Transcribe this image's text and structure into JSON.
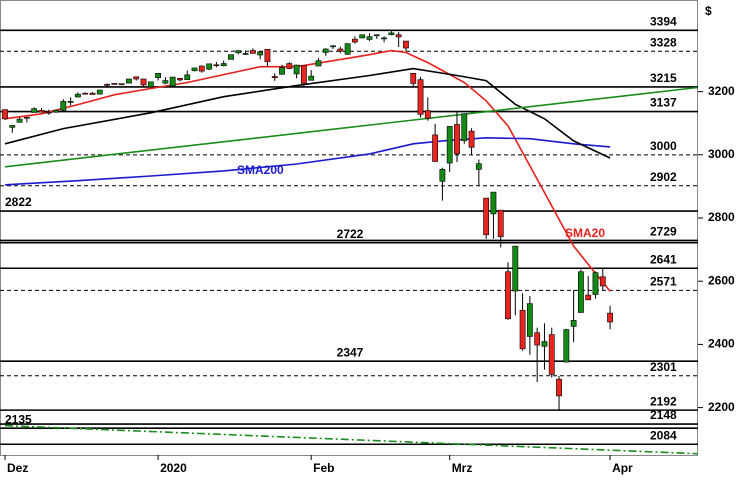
{
  "chart_data": {
    "type": "candlestick",
    "currency_symbol": "$",
    "categories": [
      "Dez",
      null,
      null,
      null,
      null,
      null,
      null,
      null,
      null,
      null,
      null,
      null,
      null,
      null,
      null,
      null,
      null,
      null,
      null,
      null,
      null,
      "2020",
      null,
      null,
      null,
      null,
      null,
      null,
      null,
      null,
      null,
      null,
      null,
      null,
      null,
      null,
      null,
      null,
      null,
      null,
      null,
      null,
      "Feb",
      null,
      null,
      null,
      null,
      null,
      null,
      null,
      null,
      null,
      null,
      null,
      null,
      null,
      null,
      null,
      null,
      null,
      null,
      "Mrz",
      null,
      null,
      null,
      null,
      null,
      null,
      null,
      null,
      null,
      null,
      null,
      null,
      null,
      null,
      null,
      null,
      null,
      null,
      null,
      null,
      null,
      "Apr"
    ],
    "open": [
      3143,
      3087,
      3103,
      3119,
      3134,
      3141,
      3135,
      3135,
      3141,
      3166,
      3183,
      3195,
      3195,
      3192,
      3223,
      3226,
      3225,
      3227,
      3247,
      3240,
      3215,
      3244,
      3227,
      3218,
      3242,
      3238,
      3266,
      3281,
      3271,
      3285,
      3282,
      3302,
      3323,
      3321,
      3330,
      3316,
      3334,
      3248,
      3255,
      3289,
      3256,
      3282,
      3236,
      3281,
      3324,
      3344,
      3335,
      3318,
      3366,
      3370,
      3365,
      3378,
      3369,
      3380,
      3380,
      3360,
      3258,
      3238,
      3140,
      3063,
      2916,
      2974,
      3096,
      3045,
      3075,
      2954,
      2863,
      2813,
      2825,
      2630,
      2569,
      2508,
      2425,
      2437,
      2394,
      2431,
      2290,
      2344,
      2457,
      2501,
      2556,
      2558,
      2614,
      2499
    ],
    "high": [
      3144,
      3094,
      3119,
      3119,
      3150,
      3148,
      3143,
      3143,
      3176,
      3182,
      3198,
      3198,
      3199,
      3205,
      3226,
      3227,
      3226,
      3240,
      3247,
      3240,
      3231,
      3258,
      3246,
      3247,
      3244,
      3267,
      3275,
      3283,
      3288,
      3294,
      3298,
      3317,
      3330,
      3329,
      3337,
      3326,
      3334,
      3258,
      3285,
      3293,
      3285,
      3282,
      3268,
      3306,
      3337,
      3347,
      3342,
      3352,
      3375,
      3381,
      3385,
      3380,
      3375,
      3393,
      3389,
      3360,
      3259,
      3247,
      3182,
      3098,
      2959,
      3091,
      3137,
      3130,
      3084,
      2985,
      2863,
      2882,
      2825,
      2660,
      2711,
      2562,
      2553,
      2453,
      2467,
      2453,
      2300,
      2449,
      2572,
      2637,
      2616,
      2631,
      2641,
      2522
    ],
    "low": [
      3110,
      3070,
      3102,
      3103,
      3134,
      3135,
      3127,
      3133,
      3138,
      3156,
      3182,
      3191,
      3191,
      3192,
      3216,
      3222,
      3220,
      3227,
      3235,
      3216,
      3213,
      3235,
      3223,
      3215,
      3232,
      3236,
      3264,
      3260,
      3268,
      3277,
      3280,
      3302,
      3318,
      3316,
      3321,
      3302,
      3281,
      3234,
      3253,
      3271,
      3242,
      3214,
      3236,
      3281,
      3313,
      3335,
      3322,
      3317,
      3352,
      3369,
      3360,
      3367,
      3356,
      3378,
      3341,
      3328,
      3214,
      3118,
      3108,
      2977,
      2855,
      2946,
      2977,
      3035,
      2999,
      2901,
      2734,
      2734,
      2707,
      2478,
      2492,
      2380,
      2367,
      2281,
      2320,
      2295,
      2192,
      2344,
      2407,
      2501,
      2546,
      2545,
      2571,
      2448
    ],
    "close": [
      3114,
      3093,
      3113,
      3117,
      3146,
      3135,
      3133,
      3141,
      3169,
      3169,
      3192,
      3192,
      3191,
      3205,
      3221,
      3224,
      3223,
      3240,
      3240,
      3221,
      3231,
      3258,
      3235,
      3246,
      3237,
      3253,
      3275,
      3265,
      3288,
      3283,
      3289,
      3317,
      3330,
      3321,
      3321,
      3326,
      3295,
      3244,
      3276,
      3273,
      3284,
      3226,
      3249,
      3298,
      3335,
      3345,
      3328,
      3352,
      3357,
      3380,
      3374,
      3380,
      3370,
      3386,
      3373,
      3338,
      3226,
      3128,
      3116,
      2979,
      2954,
      3090,
      3003,
      3130,
      3024,
      2972,
      2747,
      2882,
      2741,
      2481,
      2711,
      2386,
      2529,
      2398,
      2409,
      2305,
      2237,
      2447,
      2476,
      2630,
      2541,
      2627,
      2585,
      2471
    ],
    "up_color": "#138a13",
    "down_color": "#e8251f",
    "overlays": [
      {
        "name": "SMA20",
        "color": "#e8201c",
        "x": [
          0,
          5,
          10,
          15,
          20,
          25,
          30,
          35,
          40,
          45,
          50,
          53,
          55,
          58,
          60,
          63,
          66,
          69,
          72,
          75,
          78,
          80,
          83
        ],
        "values": [
          3114,
          3130,
          3159,
          3190,
          3210,
          3229,
          3254,
          3279,
          3279,
          3298,
          3317,
          3330,
          3324,
          3292,
          3267,
          3229,
          3171,
          3092,
          2965,
          2838,
          2711,
          2654,
          2568
        ]
      },
      {
        "name": "SMA200",
        "color": "#1a1ad0",
        "x": [
          0,
          10,
          20,
          30,
          40,
          50,
          56,
          60,
          66,
          72,
          78,
          83
        ],
        "values": [
          2905,
          2918,
          2933,
          2949,
          2971,
          3003,
          3035,
          3044,
          3054,
          3051,
          3035,
          3025
        ]
      },
      {
        "color": "#000000",
        "x": [
          0,
          8,
          20,
          30,
          40,
          50,
          56,
          62,
          66,
          70,
          74,
          78,
          83
        ],
        "values": [
          3035,
          3083,
          3133,
          3184,
          3219,
          3251,
          3273,
          3251,
          3235,
          3160,
          3114,
          3044,
          2990
        ]
      },
      {
        "color": "#1a8c1a",
        "x": [
          0,
          95
        ],
        "values": [
          2962,
          3213
        ]
      },
      {
        "color": "#1a8c1a",
        "style": "dashdot",
        "x": [
          0,
          95
        ],
        "values": [
          2143,
          2054
        ]
      }
    ],
    "levels": [
      {
        "value": 3394,
        "dashed": false
      },
      {
        "value": 3328,
        "dashed": true
      },
      {
        "value": 3215,
        "dashed": false
      },
      {
        "value": 3137,
        "dashed": false
      },
      {
        "value": 3000,
        "dashed": true
      },
      {
        "value": 2902,
        "dashed": true
      },
      {
        "value": 2822,
        "dashed": false
      },
      {
        "value": 2729,
        "dashed": false
      },
      {
        "value": 2722,
        "dashed": false
      },
      {
        "value": 2641,
        "dashed": false
      },
      {
        "value": 2571,
        "dashed": true
      },
      {
        "value": 2347,
        "dashed": false
      },
      {
        "value": 2301,
        "dashed": true
      },
      {
        "value": 2192,
        "dashed": false
      },
      {
        "value": 2148,
        "dashed": false
      },
      {
        "value": 2135,
        "dashed": false
      },
      {
        "value": 2084,
        "dashed": false
      }
    ],
    "ylim": [
      2050,
      3490
    ],
    "yticks": [
      2200,
      2400,
      2600,
      2800,
      3000,
      3200
    ]
  }
}
